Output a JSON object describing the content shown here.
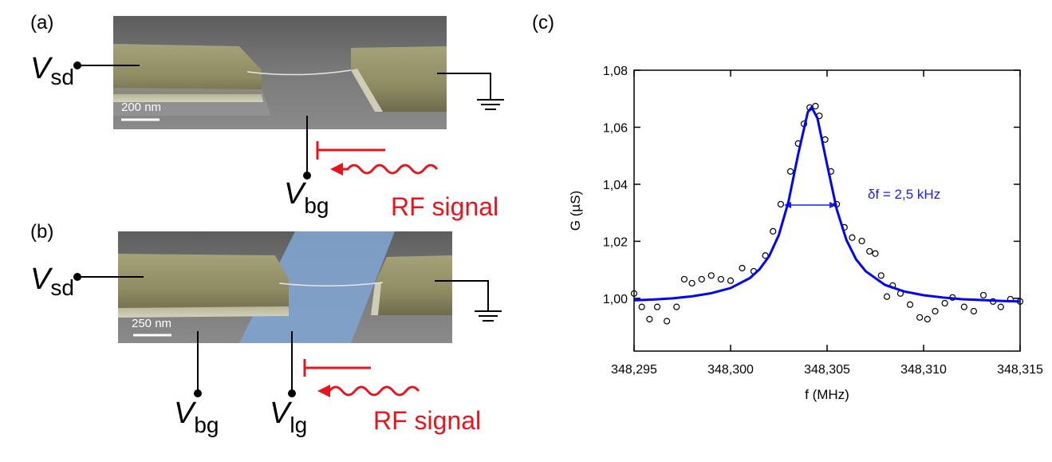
{
  "panel_a": {
    "label": "(a)",
    "scale_bar": "200 nm",
    "terminals": [
      {
        "symbol": "V",
        "subscript": "sd"
      },
      {
        "symbol": "V",
        "subscript": "bg"
      }
    ],
    "rf": "RF signal"
  },
  "panel_b": {
    "label": "(b)",
    "scale_bar": "250 nm",
    "terminals": [
      {
        "symbol": "V",
        "subscript": "sd"
      },
      {
        "symbol": "V",
        "subscript": "bg"
      },
      {
        "symbol": "V",
        "subscript": "lg"
      }
    ],
    "rf": "RF signal"
  },
  "chart_data": {
    "type": "scatter",
    "panel_label": "(c)",
    "xlabel": "f (MHz)",
    "ylabel": "G (µS)",
    "annotation": "δf = 2,5 kHz",
    "xlim": [
      348.295,
      348.315
    ],
    "ylim": [
      0.9815,
      1.08
    ],
    "xticks": [
      {
        "value": 348.295,
        "label": "348,295"
      },
      {
        "value": 348.3,
        "label": "348,300"
      },
      {
        "value": 348.305,
        "label": "348,305"
      },
      {
        "value": 348.31,
        "label": "348,310"
      },
      {
        "value": 348.315,
        "label": "348,315"
      }
    ],
    "yticks": [
      {
        "value": 1.0,
        "label": "1,00"
      },
      {
        "value": 1.02,
        "label": "1,02"
      },
      {
        "value": 1.04,
        "label": "1,04"
      },
      {
        "value": 1.06,
        "label": "1,06"
      },
      {
        "value": 1.08,
        "label": "1,08"
      }
    ],
    "series": [
      {
        "type": "scatter",
        "color": "#000000",
        "x": [
          348.295,
          348.2954,
          348.2958,
          348.2962,
          348.2967,
          348.2972,
          348.2976,
          348.298,
          348.2985,
          348.299,
          348.2995,
          348.3,
          348.3006,
          348.3012,
          348.3018,
          348.3022,
          348.3026,
          348.3031,
          348.3035,
          348.3038,
          348.3041,
          348.3044,
          348.3046,
          348.3049,
          348.3052,
          348.3055,
          348.3059,
          348.3063,
          348.3068,
          348.3072,
          348.3075,
          348.3078,
          348.3081,
          348.3084,
          348.3088,
          348.3093,
          348.3098,
          348.3102,
          348.3106,
          348.3111,
          348.3115,
          348.3121,
          348.3126,
          348.3131,
          348.3136,
          348.314,
          348.3145,
          348.315
        ],
        "values": [
          1.0017,
          0.997,
          0.9927,
          0.997,
          0.992,
          0.997,
          1.0067,
          1.0053,
          1.0067,
          1.008,
          1.0067,
          1.0062,
          1.0106,
          1.0095,
          1.015,
          1.0235,
          1.033,
          1.0445,
          1.0543,
          1.0612,
          1.0669,
          1.0674,
          1.064,
          1.0557,
          1.0445,
          1.033,
          1.0249,
          1.0213,
          1.0201,
          1.0165,
          1.0157,
          1.008,
          1.0006,
          1.0045,
          1.0017,
          0.9978,
          0.9933,
          0.9927,
          0.9955,
          0.9983,
          1.0003,
          0.997,
          0.9955,
          1.0011,
          0.9989,
          0.997,
          0.9997,
          0.9989
        ]
      },
      {
        "type": "line",
        "color": "#0000ff",
        "x": [
          348.295,
          348.296,
          348.297,
          348.298,
          348.299,
          348.3,
          348.301,
          348.3015,
          348.302,
          348.3025,
          348.303,
          348.3035,
          348.304,
          348.3042,
          348.3045,
          348.305,
          348.3055,
          348.306,
          348.3065,
          348.307,
          348.308,
          348.309,
          348.31,
          348.311,
          348.312,
          348.313,
          348.314,
          348.315
        ],
        "values": [
          0.9993,
          0.9996,
          1.0,
          1.0007,
          1.0018,
          1.0036,
          1.0071,
          1.0102,
          1.0148,
          1.0222,
          1.0339,
          1.0505,
          1.0653,
          1.067,
          1.0632,
          1.0469,
          1.0312,
          1.0205,
          1.0137,
          1.0095,
          1.0047,
          1.0024,
          1.0011,
          1.0003,
          0.9997,
          0.9994,
          0.9991,
          0.9989
        ]
      }
    ]
  }
}
